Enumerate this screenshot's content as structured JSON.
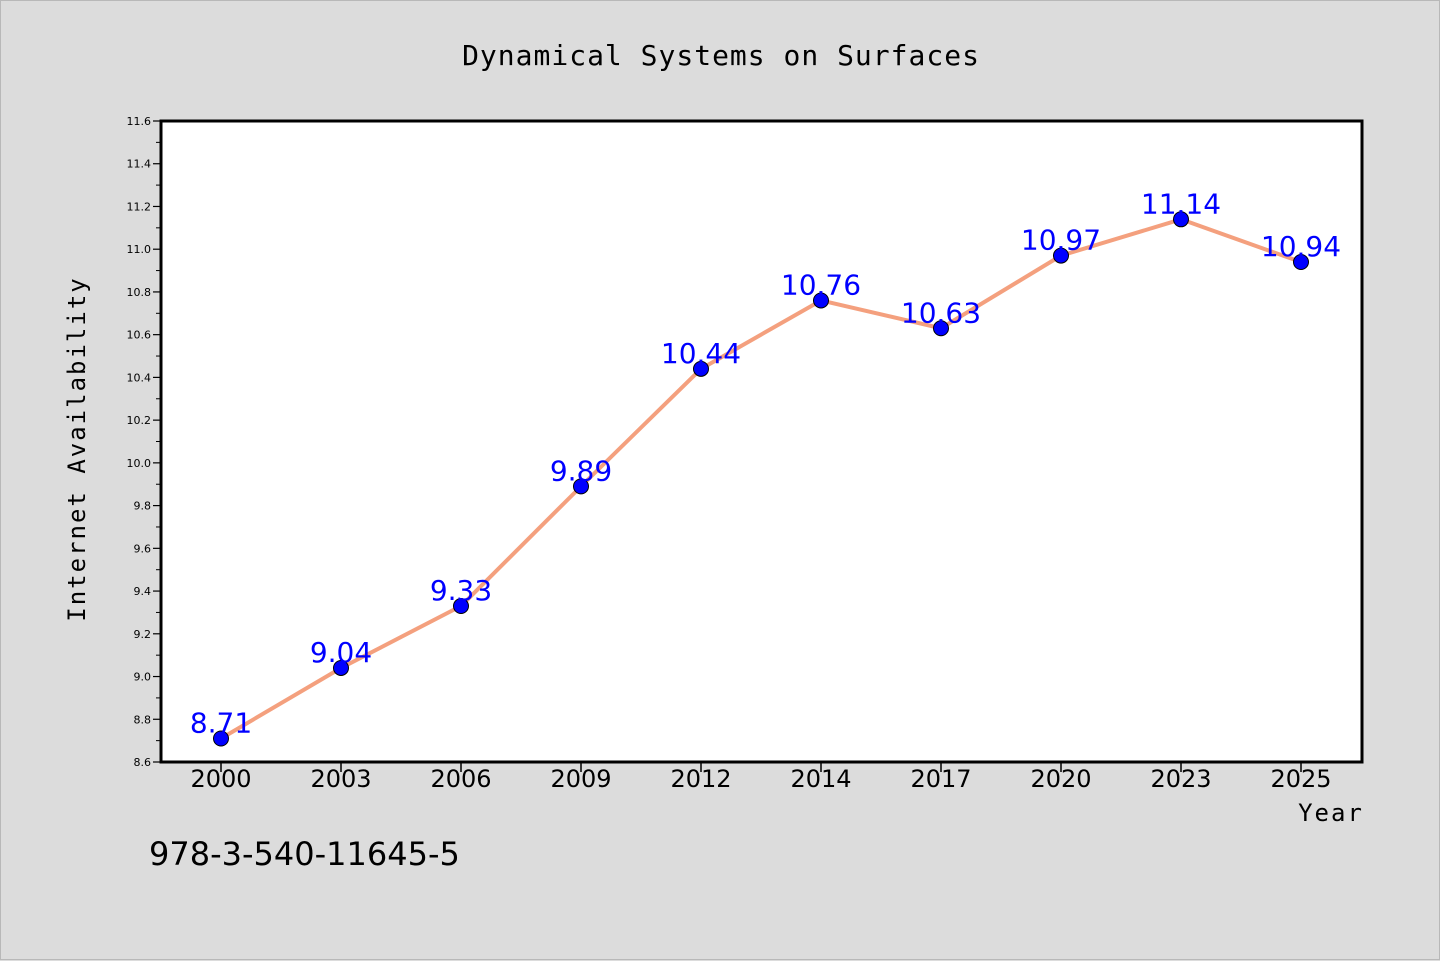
{
  "colors": {
    "background": "#dcdcdc",
    "plot_background": "#ffffff",
    "line": "#f4a07e",
    "marker": "#0000ff",
    "data_label": "#0000ff",
    "axis": "#000000"
  },
  "chart_data": {
    "type": "line",
    "title": "Dynamical Systems on Surfaces",
    "xlabel": "Year",
    "ylabel": "Internet Availability",
    "categories": [
      "2000",
      "2003",
      "2006",
      "2009",
      "2012",
      "2014",
      "2017",
      "2020",
      "2023",
      "2025"
    ],
    "series": [
      {
        "values": [
          8.71,
          9.04,
          9.33,
          9.89,
          10.44,
          10.76,
          10.63,
          10.97,
          11.14,
          10.94
        ],
        "labels": [
          "8.71",
          "9.04",
          "9.33",
          "9.89",
          "10.44",
          "10.76",
          "10.63",
          "10.97",
          "11.14",
          "10.94"
        ],
        "marker": "circle"
      }
    ],
    "ylim": [
      8.6,
      11.6
    ],
    "y_ticks": [
      "8.6",
      "8.8",
      "9.0",
      "9.2",
      "9.4",
      "9.6",
      "9.8",
      "10.0",
      "10.2",
      "10.4",
      "10.6",
      "10.8",
      "11.0",
      "11.2",
      "11.4",
      "11.6"
    ],
    "grid": false,
    "legend": "none"
  },
  "footer": {
    "isbn": "978-3-540-11645-5"
  }
}
